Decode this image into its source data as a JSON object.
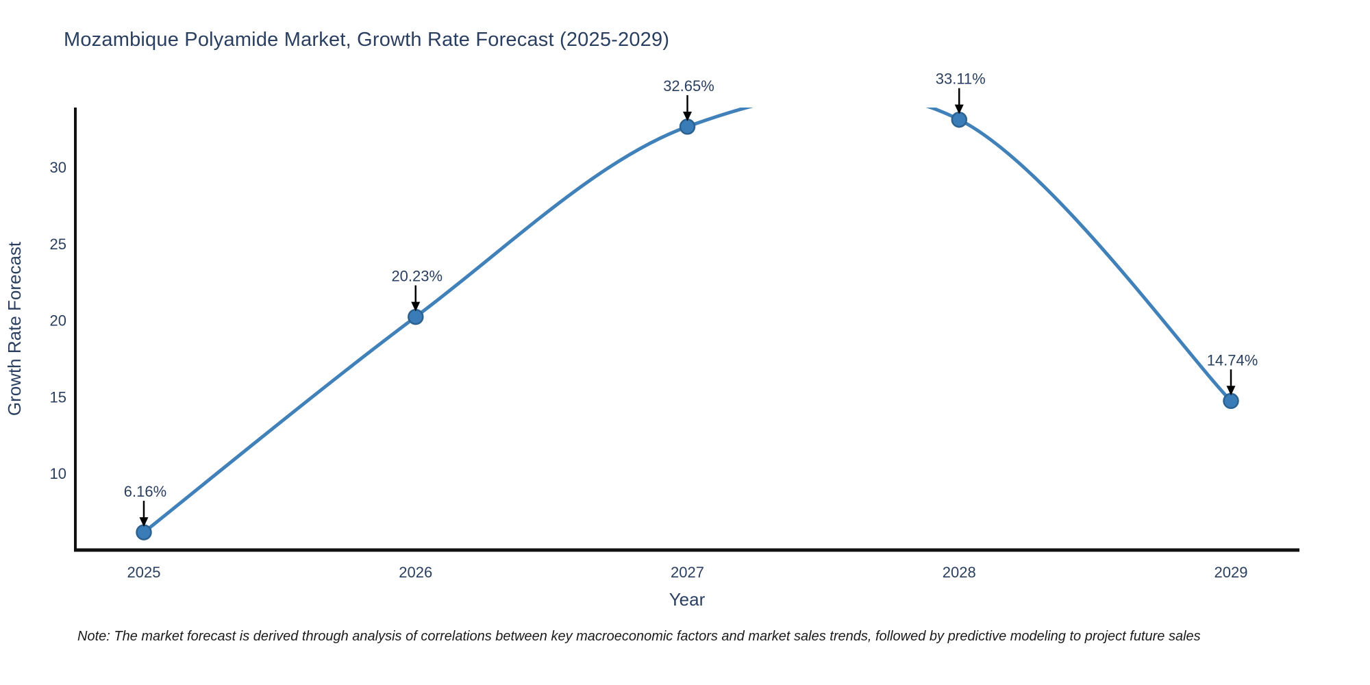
{
  "title": "Mozambique Polyamide Market, Growth Rate Forecast (2025-2029)",
  "note": "Note: The market forecast is derived through analysis of correlations between key macroeconomic factors and market sales trends, followed by predictive modeling to project future sales",
  "chart_data": {
    "type": "line",
    "title": "Mozambique Polyamide Market, Growth Rate Forecast (2025-2029)",
    "xlabel": "Year",
    "ylabel": "Growth Rate Forecast",
    "x": [
      2025,
      2026,
      2027,
      2028,
      2029
    ],
    "y": [
      6.16,
      20.23,
      32.65,
      33.11,
      14.74
    ],
    "labels": [
      "6.16%",
      "20.23%",
      "32.65%",
      "33.11%",
      "14.74%"
    ],
    "xticks": [
      "2025",
      "2026",
      "2027",
      "2028",
      "2029"
    ],
    "yticks": [
      10,
      15,
      20,
      25,
      30
    ],
    "ylim": [
      5.0,
      33.9
    ],
    "line_shape": "spline",
    "grid": false,
    "legend": false,
    "colors": {
      "line": "#4181b9",
      "marker_fill": "#3a7cb8",
      "marker_edge": "#2d618f",
      "axis_line": "#111111",
      "text": "#2a3f5f",
      "annotation_arrow": "#000000",
      "background": "#ffffff"
    }
  }
}
